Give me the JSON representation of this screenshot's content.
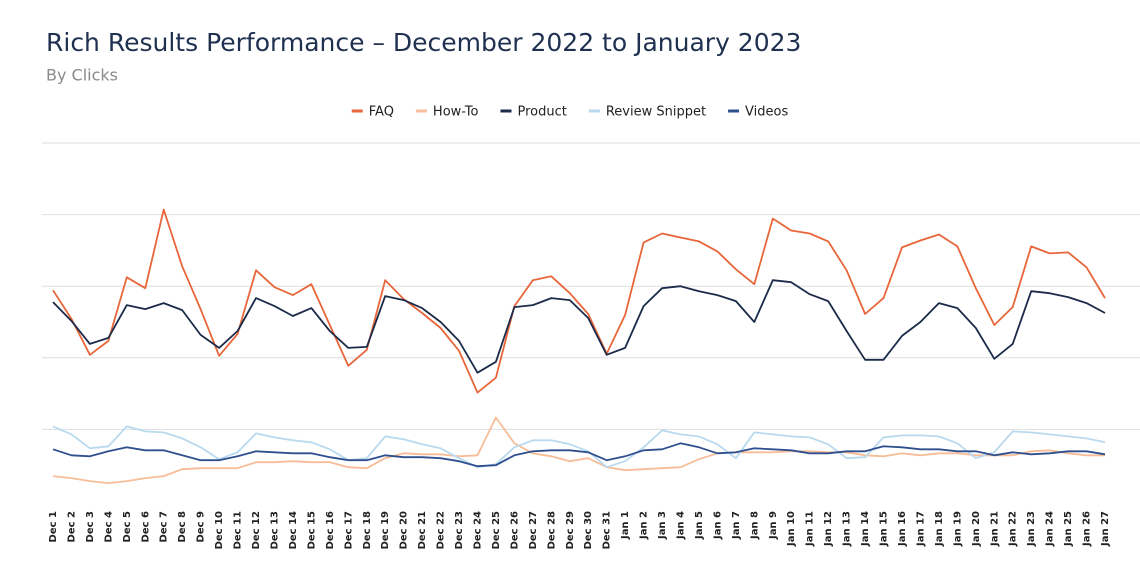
{
  "chart_data": {
    "type": "line",
    "title": "Rich Results Performance – December 2022 to January 2023",
    "subtitle": "By Clicks",
    "categories": [
      "Dec 1",
      "Dec 2",
      "Dec 3",
      "Dec 4",
      "Dec 5",
      "Dec 6",
      "Dec 7",
      "Dec 8",
      "Dec 9",
      "Dec 10",
      "Dec 11",
      "Dec 12",
      "Dec 13",
      "Dec 14",
      "Dec 15",
      "Dec 16",
      "Dec 17",
      "Dec 18",
      "Dec 19",
      "Dec 20",
      "Dec 21",
      "Dec 22",
      "Dec 23",
      "Dec 24",
      "Dec 25",
      "Dec 26",
      "Dec 27",
      "Dec 28",
      "Dec 29",
      "Dec 30",
      "Dec 31",
      "Jan 1",
      "Jan 2",
      "Jan 3",
      "Jan 4",
      "Jan 5",
      "Jan 6",
      "Jan 7",
      "Jan 8",
      "Jan 9",
      "Jan 10",
      "Jan 11",
      "Jan 12",
      "Jan 13",
      "Jan 14",
      "Jan 15",
      "Jan 16",
      "Jan 17",
      "Jan 18",
      "Jan 19",
      "Jan 20",
      "Jan 21",
      "Jan 22",
      "Jan 23",
      "Jan 24",
      "Jan 25",
      "Jan 26",
      "Jan 27"
    ],
    "series": [
      {
        "name": "FAQ",
        "color": "#e8663a",
        "values": [
          212,
          183,
          147,
          161,
          225,
          214,
          293,
          236,
          193,
          146,
          168,
          232,
          215,
          207,
          218,
          177,
          136,
          152,
          222,
          203,
          189,
          174,
          151,
          109,
          124,
          196,
          222,
          226,
          209,
          188,
          148,
          187,
          260,
          269,
          265,
          261,
          251,
          233,
          218,
          284,
          272,
          269,
          261,
          232,
          188,
          204,
          255,
          262,
          268,
          256,
          214,
          177,
          195,
          256,
          249,
          250,
          235,
          204
        ]
      },
      {
        "name": "How-To",
        "color": "#f7bd98",
        "values": [
          25,
          23,
          20,
          18,
          20,
          23,
          25,
          32,
          33,
          33,
          33,
          39,
          39,
          40,
          39,
          39,
          34,
          33,
          43,
          48,
          47,
          47,
          45,
          46,
          84,
          58,
          48,
          45,
          40,
          43,
          34,
          31,
          32,
          33,
          34,
          42,
          48,
          49,
          49,
          49,
          50,
          50,
          49,
          49,
          46,
          45,
          48,
          46,
          48,
          48,
          46,
          46,
          46,
          50,
          51,
          48,
          46,
          46
        ]
      },
      {
        "name": "Product",
        "color": "#1c2b4a",
        "values": [
          200,
          181,
          158,
          164,
          197,
          193,
          199,
          192,
          167,
          154,
          171,
          204,
          196,
          186,
          194,
          171,
          154,
          155,
          206,
          202,
          194,
          180,
          161,
          129,
          140,
          195,
          197,
          204,
          202,
          184,
          147,
          154,
          196,
          214,
          216,
          211,
          207,
          201,
          180,
          222,
          220,
          208,
          201,
          171,
          142,
          142,
          166,
          180,
          199,
          194,
          174,
          143,
          158,
          211,
          209,
          205,
          199,
          189
        ]
      },
      {
        "name": "Review Snippet",
        "color": "#b9d9ef",
        "values": [
          75,
          67,
          53,
          55,
          75,
          70,
          69,
          63,
          54,
          42,
          49,
          68,
          64,
          61,
          59,
          52,
          41,
          43,
          65,
          62,
          57,
          53,
          43,
          34,
          37,
          54,
          61,
          61,
          57,
          50,
          34,
          40,
          54,
          71,
          67,
          65,
          57,
          43,
          69,
          67,
          65,
          64,
          57,
          43,
          44,
          64,
          66,
          66,
          65,
          58,
          43,
          49,
          70,
          69,
          67,
          65,
          63,
          59
        ]
      },
      {
        "name": "Videos",
        "color": "#2f4f8f",
        "values": [
          52,
          46,
          45,
          50,
          54,
          51,
          51,
          46,
          41,
          41,
          45,
          50,
          49,
          48,
          48,
          44,
          41,
          41,
          46,
          44,
          44,
          43,
          40,
          35,
          36,
          46,
          50,
          51,
          51,
          49,
          41,
          45,
          51,
          52,
          58,
          54,
          48,
          49,
          53,
          52,
          51,
          48,
          48,
          50,
          50,
          55,
          54,
          52,
          52,
          50,
          50,
          46,
          49,
          47,
          48,
          50,
          50,
          47
        ]
      }
    ],
    "ylim": [
      0,
      360
    ],
    "yticks": [
      72,
      144,
      216,
      288,
      360
    ],
    "grid": true,
    "legend": "top"
  }
}
